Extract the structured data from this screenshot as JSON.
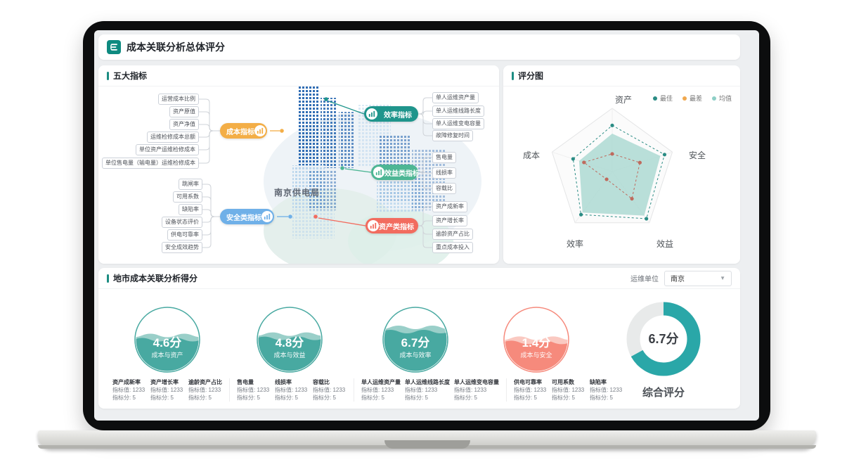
{
  "header": {
    "title": "成本关联分析总体评分"
  },
  "panels": {
    "indicators": {
      "title": "五大指标",
      "center_label": "南京供电局",
      "groups": [
        {
          "name": "成本指标",
          "color": "#f3ae47",
          "side": "left",
          "items": [
            "运营成本比例",
            "资产原值",
            "资产净值",
            "运维检修成本总额",
            "单位资产运维检修成本",
            "单位售电量（输电量）运维检修成本"
          ]
        },
        {
          "name": "安全类指标",
          "color": "#6fb0e8",
          "side": "left",
          "items": [
            "跳闸率",
            "可用系数",
            "缺陷率",
            "设备状态评价",
            "供电可靠率",
            "安全成效趋势"
          ]
        },
        {
          "name": "效率指标",
          "color": "#1f958c",
          "side": "right",
          "items": [
            "单人运维资产量",
            "单人运维线路长度",
            "单人运维变电容量",
            "故障修复时间"
          ]
        },
        {
          "name": "效益类指标",
          "color": "#4db694",
          "side": "right",
          "items": [
            "售电量",
            "线损率",
            "容载比"
          ]
        },
        {
          "name": "资产类指标",
          "color": "#f26c5f",
          "side": "right",
          "items": [
            "资产成新率",
            "资产增长率",
            "逾龄资产占比",
            "重点成本投入"
          ]
        }
      ]
    },
    "radar": {
      "title": "评分图"
    },
    "city": {
      "title": "地市成本关联分析得分",
      "unit_label": "运维单位",
      "unit_value": "南京",
      "gauges": [
        {
          "score": "4.6分",
          "label": "成本与资产",
          "theme": "teal",
          "level": 0.5
        },
        {
          "score": "4.8分",
          "label": "成本与效益",
          "theme": "teal",
          "level": 0.52
        },
        {
          "score": "6.7分",
          "label": "成本与效率",
          "theme": "teal",
          "level": 0.62
        },
        {
          "score": "1.4分",
          "label": "成本与安全",
          "theme": "red",
          "level": 0.46
        }
      ],
      "donut": {
        "score": "6.7分",
        "label": "综合评分",
        "percent": 67
      },
      "metric_labels": {
        "value": "指标值",
        "score": "指标分"
      },
      "metric_groups": [
        {
          "metrics": [
            {
              "title": "资产成新率",
              "value": "1233",
              "score": "5"
            },
            {
              "title": "资产增长率",
              "value": "1233",
              "score": "5"
            },
            {
              "title": "逾龄资产占比",
              "value": "1233",
              "score": "5"
            }
          ]
        },
        {
          "metrics": [
            {
              "title": "售电量",
              "value": "1233",
              "score": "5"
            },
            {
              "title": "线损率",
              "value": "1233",
              "score": "5"
            },
            {
              "title": "容载比",
              "value": "1233",
              "score": "5"
            }
          ]
        },
        {
          "metrics": [
            {
              "title": "单人运维资产量",
              "value": "1233",
              "score": "5"
            },
            {
              "title": "单人运维线路长度",
              "value": "1233",
              "score": "5"
            },
            {
              "title": "单人运维变电容量",
              "value": "1233",
              "score": "5"
            }
          ]
        },
        {
          "metrics": [
            {
              "title": "供电可靠率",
              "value": "1233",
              "score": "5"
            },
            {
              "title": "可用系数",
              "value": "1233",
              "score": "5"
            },
            {
              "title": "缺陷率",
              "value": "1233",
              "score": "5"
            }
          ]
        }
      ]
    }
  },
  "chart_data": {
    "type": "radar",
    "title": "评分图",
    "categories": [
      "资产",
      "安全",
      "效益",
      "效率",
      "成本"
    ],
    "range": [
      0,
      10
    ],
    "grid": "single-outer-pentagon",
    "legend_position": "top-right",
    "legend": [
      {
        "label": "最佳",
        "color": "#2a8c84"
      },
      {
        "label": "最差",
        "color": "#f0a84e"
      },
      {
        "label": "均值",
        "color": "#8ecfc6"
      }
    ],
    "series": [
      {
        "name": "最佳",
        "values": [
          7.3,
          8.7,
          9.2,
          8.4,
          6.5
        ],
        "color": "#2a8c84",
        "style": "dashed"
      },
      {
        "name": "最差",
        "values": [
          2.8,
          4.6,
          5.3,
          1.5,
          4.7
        ],
        "color": "#bf6a5d",
        "style": "dashed"
      },
      {
        "name": "均值",
        "values": [
          6.0,
          8.0,
          8.6,
          8.0,
          5.5
        ],
        "color": "#a9d8d1",
        "style": "area"
      }
    ]
  },
  "colors": {
    "primary": "#128c80",
    "panel_bar": "#1c8c82",
    "gauge_teal": "#48a9a1",
    "gauge_teal_light": "#8fcac3",
    "gauge_red": "#f68a7c",
    "gauge_red_light": "#fac3ba",
    "donut_arc": "#2aa7a8",
    "donut_track": "#e8eaea",
    "building_dark": "#2f6cb3",
    "building_light": "#b7d4ec"
  }
}
